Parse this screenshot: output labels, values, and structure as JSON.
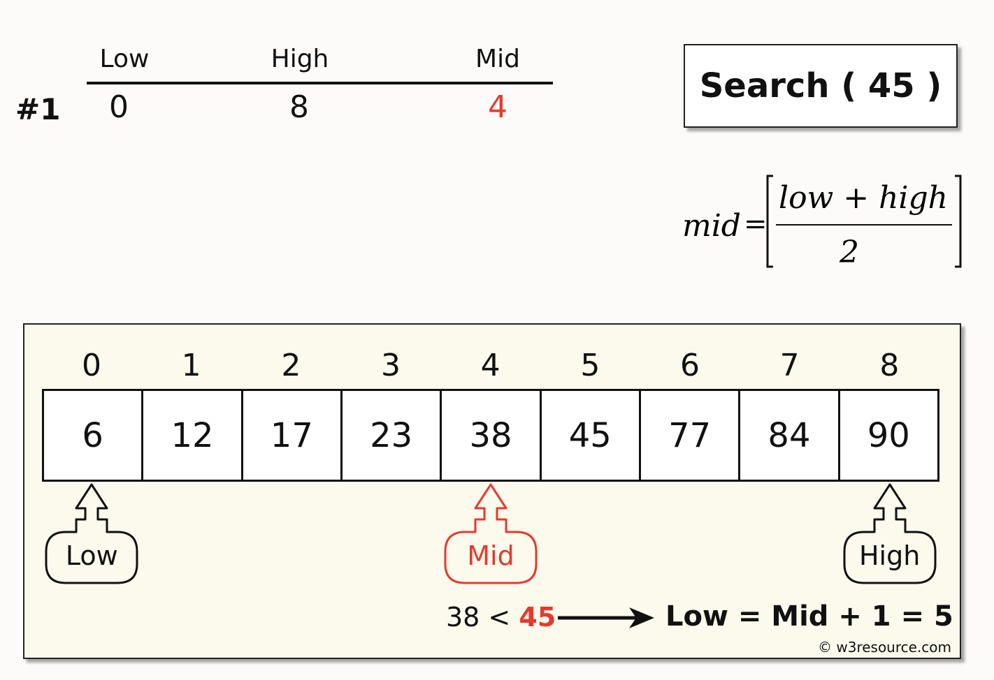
{
  "step": {
    "number": "#1"
  },
  "table": {
    "headers": [
      "Low",
      "High",
      "Mid"
    ],
    "values": [
      "0",
      "8",
      "4"
    ]
  },
  "search": {
    "label": "Search ( 45 )"
  },
  "formula": {
    "lhs": "mid",
    "numerator": "low + high",
    "denominator": "2"
  },
  "array": {
    "indices": [
      "0",
      "1",
      "2",
      "3",
      "4",
      "5",
      "6",
      "7",
      "8"
    ],
    "values": [
      "6",
      "12",
      "17",
      "23",
      "38",
      "45",
      "77",
      "84",
      "90"
    ]
  },
  "pointers": {
    "low": {
      "label": "Low",
      "index": 0
    },
    "mid": {
      "label": "Mid",
      "index": 4
    },
    "high": {
      "label": "High",
      "index": 8
    }
  },
  "note": {
    "comparison": "38 <",
    "target": "45",
    "result": "Low = Mid + 1 = 5"
  },
  "copyright": "© w3resource.com",
  "colors": {
    "highlight": "#e53a2e",
    "ink": "#111111",
    "panel": "#fbfaec"
  }
}
